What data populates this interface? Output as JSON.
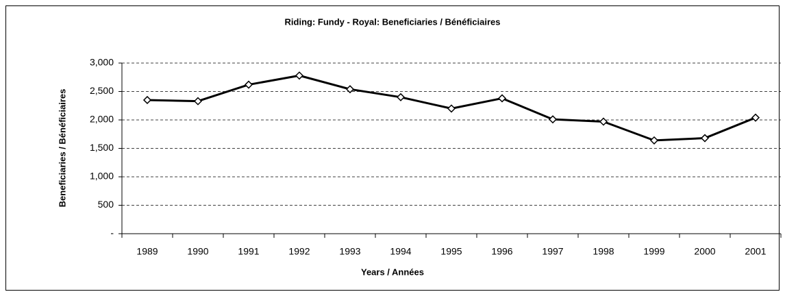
{
  "chart_data": {
    "type": "line",
    "title": "Riding:  Fundy - Royal:  Beneficiaries / Bénéficiaires",
    "x_label": "Years / Années",
    "y_label": "Beneficiaries / Bénéficiaires",
    "categories": [
      "1989",
      "1990",
      "1991",
      "1992",
      "1993",
      "1994",
      "1995",
      "1996",
      "1997",
      "1998",
      "1999",
      "2000",
      "2001"
    ],
    "series": [
      {
        "name": "Beneficiaries / Bénéficiaires",
        "color": "#000000",
        "values": [
          2350,
          2330,
          2620,
          2780,
          2540,
          2400,
          2200,
          2380,
          2010,
          1970,
          1640,
          1680,
          2040
        ]
      }
    ],
    "ylim": [
      0,
      3000
    ],
    "yticks": [
      {
        "value": 0,
        "label": "-"
      },
      500,
      {
        "value": 1000,
        "label": "1,000"
      },
      {
        "value": 1500,
        "label": "1,500"
      },
      {
        "value": 2000,
        "label": "2,000"
      },
      {
        "value": 2500,
        "label": "2,500"
      },
      {
        "value": 3000,
        "label": "3,000"
      }
    ],
    "grid": true
  }
}
